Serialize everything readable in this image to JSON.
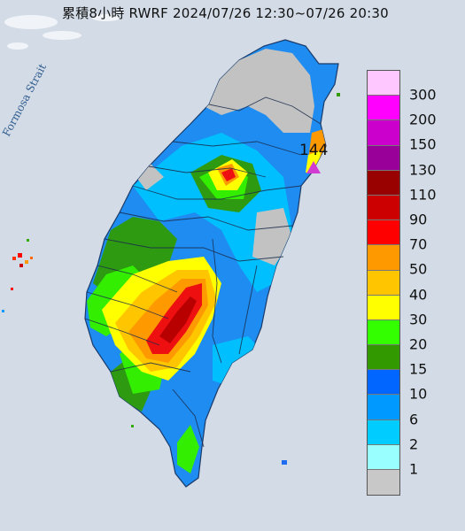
{
  "title": "累積8小時 RWRF 2024/07/26 12:30~07/26 20:30",
  "strait_label": "Formosa Strait",
  "max_value_label": "144",
  "legend": {
    "levels": [
      {
        "label": "300",
        "color": "#ffc7ff"
      },
      {
        "label": "200",
        "color": "#ff00ff"
      },
      {
        "label": "150",
        "color": "#cc00cc"
      },
      {
        "label": "130",
        "color": "#990099"
      },
      {
        "label": "110",
        "color": "#990000"
      },
      {
        "label": "90",
        "color": "#cc0000"
      },
      {
        "label": "70",
        "color": "#ff0000"
      },
      {
        "label": "50",
        "color": "#ff9900"
      },
      {
        "label": "40",
        "color": "#ffc600"
      },
      {
        "label": "30",
        "color": "#ffff00"
      },
      {
        "label": "20",
        "color": "#33ff00"
      },
      {
        "label": "15",
        "color": "#339900"
      },
      {
        "label": "10",
        "color": "#0066ff"
      },
      {
        "label": "6",
        "color": "#0099ff"
      },
      {
        "label": "2",
        "color": "#00ccff"
      },
      {
        "label": "1",
        "color": "#99ffff"
      },
      {
        "label": "",
        "color": "#c8c8c8"
      }
    ]
  }
}
